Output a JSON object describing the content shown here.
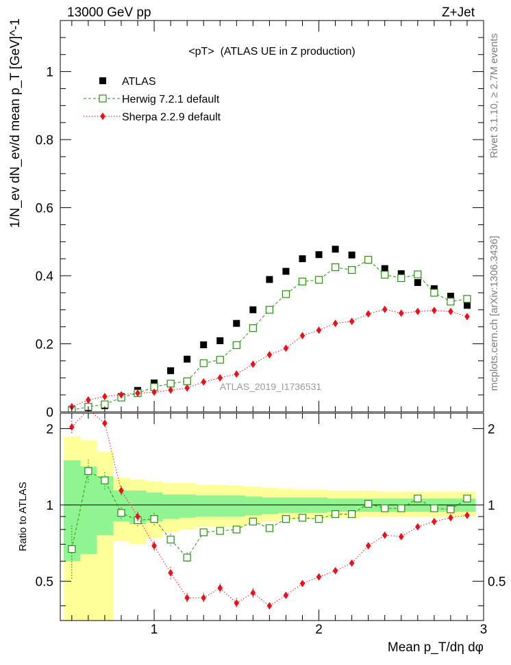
{
  "header": {
    "left": "13000 GeV pp",
    "right": "Z+Jet"
  },
  "side_labels": {
    "rivet": "Rivet 3.1.10, ≥ 2.7M events",
    "mcplots": "mcplots.cern.ch [arXiv:1306.3436]"
  },
  "chart_data": [
    {
      "type": "scatter",
      "title": "<pT>  (ATLAS UE in Z production)",
      "watermark": "ATLAS_2019_I1736531",
      "ylabel": "1/N_ev dN_ev/d mean p_T [GeV]^-1",
      "xlim": [
        0.43,
        3.0
      ],
      "ylim": [
        0,
        1.15
      ],
      "yticks": [
        "0",
        "0.2",
        "0.4",
        "0.6",
        "0.8",
        "1"
      ],
      "legend_position": "top-left",
      "x": [
        0.5,
        0.6,
        0.7,
        0.8,
        0.9,
        1.0,
        1.1,
        1.2,
        1.3,
        1.4,
        1.5,
        1.6,
        1.7,
        1.8,
        1.9,
        2.0,
        2.1,
        2.2,
        2.3,
        2.4,
        2.5,
        2.6,
        2.7,
        2.8,
        2.9
      ],
      "series": [
        {
          "name": "ATLAS",
          "color": "#000000",
          "marker": "filled-square",
          "values": [
            0.007,
            0.012,
            0.018,
            0.045,
            0.063,
            0.085,
            0.121,
            0.155,
            0.197,
            0.209,
            0.26,
            0.3,
            0.389,
            0.413,
            0.45,
            0.462,
            0.478,
            0.461,
            0.446,
            0.421,
            0.406,
            0.38,
            0.362,
            0.34,
            0.313
          ]
        },
        {
          "name": "Herwig 7.2.1 default",
          "color": "#2a8c14",
          "marker": "open-square",
          "line": "dashed",
          "values": [
            0.005,
            0.015,
            0.022,
            0.042,
            0.055,
            0.073,
            0.083,
            0.09,
            0.143,
            0.153,
            0.196,
            0.246,
            0.3,
            0.346,
            0.383,
            0.388,
            0.425,
            0.417,
            0.447,
            0.403,
            0.393,
            0.404,
            0.35,
            0.324,
            0.332
          ]
        },
        {
          "name": "Sherpa 2.2.9 default",
          "color": "#e8121c",
          "marker": "filled-diamond",
          "line": "dotted",
          "values": [
            0.015,
            0.035,
            0.045,
            0.05,
            0.055,
            0.058,
            0.064,
            0.07,
            0.088,
            0.1,
            0.111,
            0.14,
            0.168,
            0.187,
            0.224,
            0.24,
            0.26,
            0.266,
            0.288,
            0.301,
            0.29,
            0.295,
            0.298,
            0.295,
            0.28
          ]
        }
      ]
    },
    {
      "type": "scatter",
      "ylabel": "Ratio to ATLAS",
      "xlabel": "Mean p_T/dη dφ",
      "xlim": [
        0.43,
        3.0
      ],
      "ylim": [
        0.35,
        2.3
      ],
      "xticks": [
        "1",
        "2",
        "3"
      ],
      "yticks": [
        "0.5",
        "1",
        "2"
      ],
      "reference": 1,
      "x_edges": [
        0.45,
        0.55,
        0.65,
        0.75,
        0.85,
        0.95,
        1.05,
        1.15,
        1.25,
        1.35,
        1.45,
        1.55,
        1.65,
        1.75,
        1.85,
        1.95,
        2.05,
        2.15,
        2.25,
        2.35,
        2.45,
        2.55,
        2.65,
        2.75,
        2.85,
        2.95
      ],
      "band_stat": {
        "color": "#90f590",
        "lower": [
          0.6,
          0.64,
          0.76,
          0.86,
          0.84,
          0.86,
          0.88,
          0.89,
          0.9,
          0.9,
          0.9,
          0.91,
          0.92,
          0.93,
          0.93,
          0.93,
          0.94,
          0.94,
          0.94,
          0.94,
          0.94,
          0.94,
          0.94,
          0.94,
          0.94
        ],
        "upper": [
          1.5,
          1.42,
          1.3,
          1.14,
          1.14,
          1.12,
          1.1,
          1.1,
          1.09,
          1.09,
          1.09,
          1.08,
          1.07,
          1.07,
          1.07,
          1.07,
          1.06,
          1.06,
          1.06,
          1.06,
          1.06,
          1.06,
          1.06,
          1.06,
          1.06
        ]
      },
      "band_total": {
        "color": "#ffff99",
        "lower": [
          0.35,
          0.35,
          0.35,
          0.72,
          0.7,
          0.74,
          0.78,
          0.8,
          0.82,
          0.82,
          0.82,
          0.84,
          0.86,
          0.87,
          0.88,
          0.88,
          0.89,
          0.89,
          0.9,
          0.9,
          0.9,
          0.9,
          0.9,
          0.9,
          0.9
        ],
        "upper": [
          1.86,
          1.8,
          1.62,
          1.28,
          1.26,
          1.24,
          1.22,
          1.22,
          1.2,
          1.2,
          1.19,
          1.18,
          1.17,
          1.16,
          1.15,
          1.15,
          1.14,
          1.14,
          1.14,
          1.13,
          1.13,
          1.13,
          1.13,
          1.13,
          1.13
        ]
      },
      "x": [
        0.5,
        0.6,
        0.7,
        0.8,
        0.9,
        1.0,
        1.1,
        1.2,
        1.3,
        1.4,
        1.5,
        1.6,
        1.7,
        1.8,
        1.9,
        2.0,
        2.1,
        2.2,
        2.3,
        2.4,
        2.5,
        2.6,
        2.7,
        2.8,
        2.9
      ],
      "series": [
        {
          "name": "Herwig 7.2.1 default",
          "color": "#2a8c14",
          "marker": "open-square",
          "line": "dashed",
          "values": [
            0.67,
            1.36,
            1.25,
            0.93,
            0.87,
            0.88,
            0.73,
            0.62,
            0.78,
            0.79,
            0.8,
            0.86,
            0.81,
            0.88,
            0.89,
            0.88,
            0.92,
            0.92,
            1.01,
            0.97,
            0.97,
            1.06,
            0.97,
            0.96,
            1.06
          ],
          "err": [
            0.16,
            0.15,
            0.1,
            0.05,
            0.05,
            0.05,
            0.04,
            0.03,
            0.02,
            0.02,
            0.02,
            0.02,
            0.02,
            0.01,
            0.01,
            0.01,
            0.01,
            0.01,
            0.01,
            0.01,
            0.01,
            0.01,
            0.01,
            0.01,
            0.01
          ]
        },
        {
          "name": "Sherpa 2.2.9 default",
          "color": "#e8121c",
          "marker": "filled-diamond",
          "line": "dotted",
          "values": [
            2.03,
            2.38,
            2.1,
            1.14,
            0.9,
            0.69,
            0.54,
            0.43,
            0.43,
            0.47,
            0.41,
            0.45,
            0.4,
            0.44,
            0.49,
            0.52,
            0.55,
            0.59,
            0.69,
            0.76,
            0.75,
            0.82,
            0.86,
            0.89,
            0.91
          ],
          "err": [
            0.12,
            0.1,
            0.08,
            0.05,
            0.04,
            0.03,
            0.03,
            0.02,
            0.02,
            0.02,
            0.02,
            0.02,
            0.01,
            0.01,
            0.01,
            0.01,
            0.01,
            0.01,
            0.01,
            0.01,
            0.01,
            0.01,
            0.01,
            0.01,
            0.01
          ]
        }
      ]
    }
  ]
}
